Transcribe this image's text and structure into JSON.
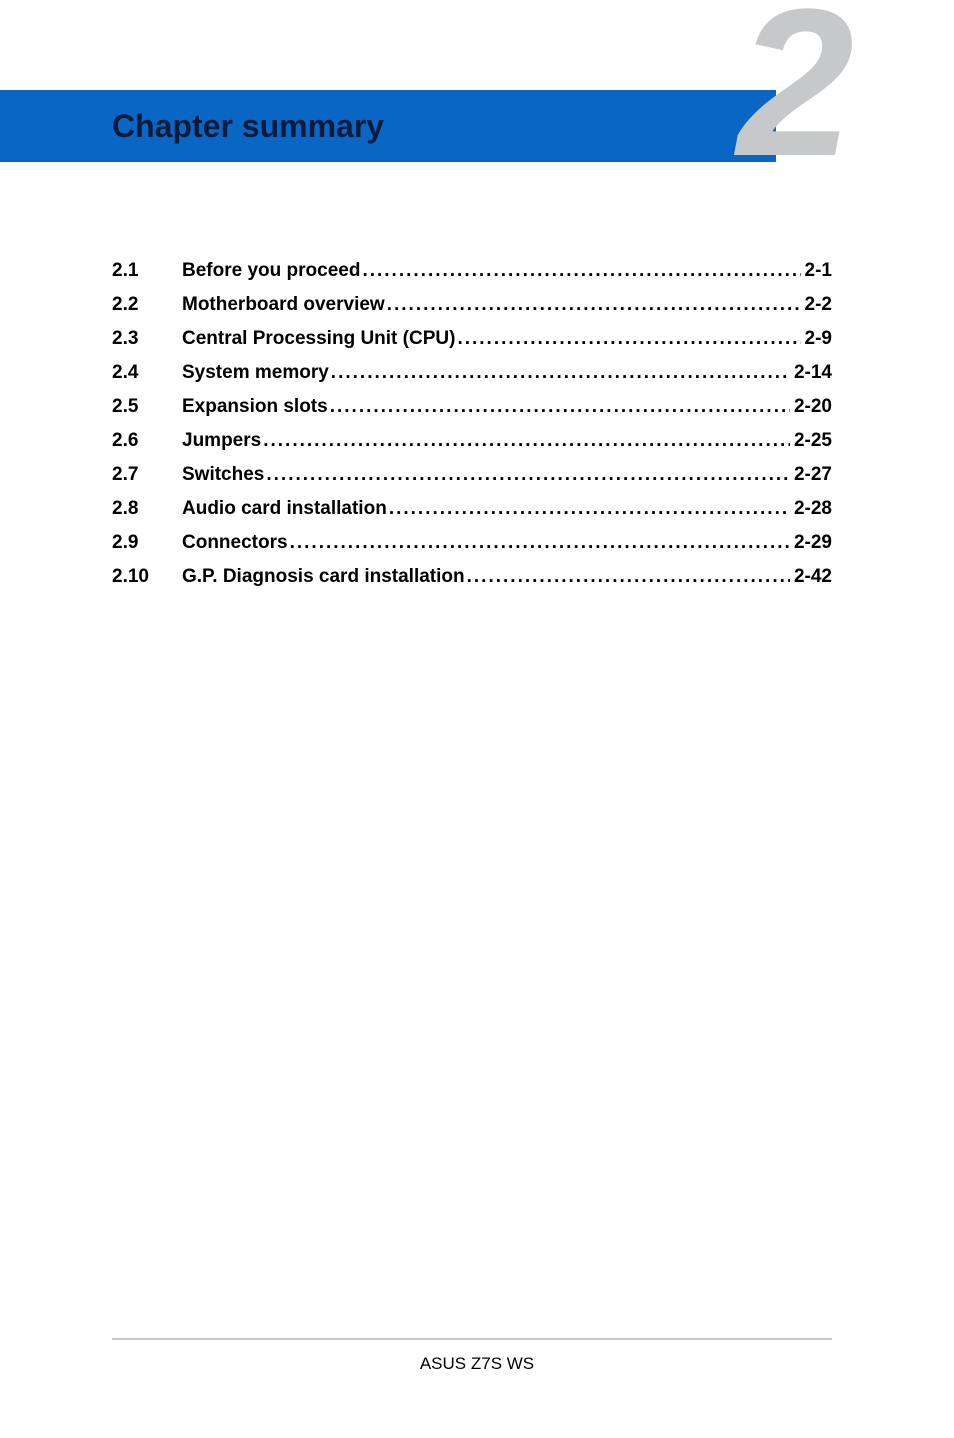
{
  "banner": {
    "title": "Chapter summary",
    "chapter_number": "2",
    "bg_color": "#0a66c4",
    "title_color": "#0a1c3c",
    "number_color": "#c7c8ca"
  },
  "toc": {
    "entries": [
      {
        "num": "2.1",
        "title": "Before you proceed",
        "page": "2-1"
      },
      {
        "num": "2.2",
        "title": "Motherboard overview",
        "page": "2-2"
      },
      {
        "num": "2.3",
        "title": "Central Processing Unit (CPU)",
        "page": "2-9"
      },
      {
        "num": "2.4",
        "title": "System memory",
        "page": "2-14"
      },
      {
        "num": "2.5",
        "title": "Expansion slots",
        "page": "2-20"
      },
      {
        "num": "2.6",
        "title": "Jumpers",
        "page": "2-25"
      },
      {
        "num": "2.7",
        "title": "Switches",
        "page": "2-27"
      },
      {
        "num": "2.8",
        "title": "Audio card installation",
        "page": "2-28"
      },
      {
        "num": "2.9",
        "title": "Connectors",
        "page": "2-29"
      },
      {
        "num": "2.10",
        "title": "G.P. Diagnosis card installation",
        "page": "2-42"
      }
    ],
    "font_size": 19,
    "font_weight": "bold",
    "text_color": "#000000"
  },
  "footer": {
    "text": "ASUS Z7S WS",
    "line_color": "#c7c8ca"
  }
}
